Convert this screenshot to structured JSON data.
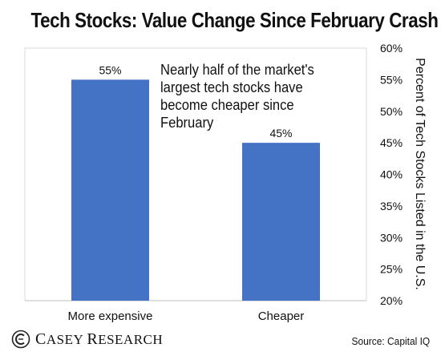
{
  "title": "Tech Stocks: Value Change Since February Crash",
  "annotation": "Nearly half of the market's largest tech stocks have become cheaper since February",
  "source": "Source: Capital IQ",
  "logo": {
    "label": "Casey Research",
    "first_initial": "C",
    "first_rest": "ASEY",
    "second_initial": "R",
    "second_rest": "ESEARCH"
  },
  "chart_data": {
    "type": "bar",
    "title": "Tech Stocks: Value Change Since February Crash",
    "categories": [
      "More expensive",
      "Cheaper"
    ],
    "values": [
      55,
      45
    ],
    "data_labels": [
      "55%",
      "45%"
    ],
    "xlabel": "",
    "ylabel": "Percent of Tech Stocks Listed in the U.S.",
    "ylim": [
      20,
      60
    ],
    "y_ticks": [
      20,
      25,
      30,
      35,
      40,
      45,
      50,
      55,
      60
    ],
    "y_tick_labels": [
      "20%",
      "25%",
      "30%",
      "35%",
      "40%",
      "45%",
      "50%",
      "55%",
      "60%"
    ],
    "y_axis_side": "right",
    "grid": false,
    "bar_color": "#4472C4"
  }
}
